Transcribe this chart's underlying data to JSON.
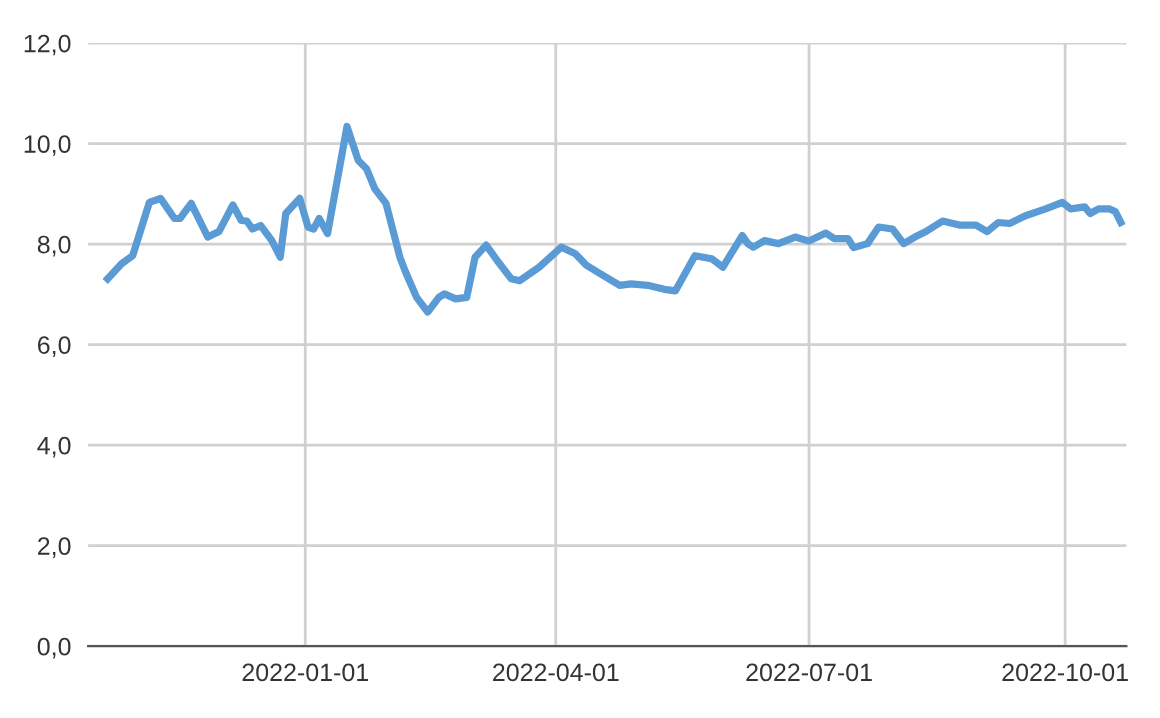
{
  "chart_data": {
    "type": "line",
    "color": "#5b9bd5",
    "grid": true,
    "marker": "none",
    "line_style": "solid",
    "x": [
      "2021-10-22",
      "2021-10-27",
      "2021-10-31",
      "2021-11-06",
      "2021-11-10",
      "2021-11-15",
      "2021-11-17",
      "2021-11-21",
      "2021-11-27",
      "2021-12-01",
      "2021-12-06",
      "2021-12-09",
      "2021-12-11",
      "2021-12-13",
      "2021-12-16",
      "2021-12-20",
      "2021-12-23",
      "2021-12-25",
      "2021-12-30",
      "2022-01-02",
      "2022-01-04",
      "2022-01-06",
      "2022-01-09",
      "2022-01-16",
      "2022-01-20",
      "2022-01-23",
      "2022-01-26",
      "2022-01-30",
      "2022-02-04",
      "2022-02-06",
      "2022-02-10",
      "2022-02-14",
      "2022-02-18",
      "2022-02-20",
      "2022-02-24",
      "2022-02-28",
      "2022-03-03",
      "2022-03-07",
      "2022-03-11",
      "2022-03-16",
      "2022-03-19",
      "2022-03-26",
      "2022-04-03",
      "2022-04-08",
      "2022-04-12",
      "2022-04-17",
      "2022-04-24",
      "2022-04-28",
      "2022-05-04",
      "2022-05-10",
      "2022-05-14",
      "2022-05-21",
      "2022-05-27",
      "2022-05-31",
      "2022-06-07",
      "2022-06-09",
      "2022-06-11",
      "2022-06-15",
      "2022-06-20",
      "2022-06-26",
      "2022-07-01",
      "2022-07-07",
      "2022-07-10",
      "2022-07-15",
      "2022-07-17",
      "2022-07-22",
      "2022-07-26",
      "2022-07-31",
      "2022-08-04",
      "2022-08-08",
      "2022-08-12",
      "2022-08-18",
      "2022-08-24",
      "2022-08-30",
      "2022-09-03",
      "2022-09-07",
      "2022-09-11",
      "2022-09-17",
      "2022-09-24",
      "2022-09-30",
      "2022-10-03",
      "2022-10-08",
      "2022-10-10",
      "2022-10-13",
      "2022-10-17",
      "2022-10-19",
      "2022-10-21"
    ],
    "values": [
      7.31,
      7.61,
      7.77,
      8.83,
      8.91,
      8.51,
      8.51,
      8.81,
      8.14,
      8.25,
      8.78,
      8.47,
      8.46,
      8.3,
      8.37,
      8.07,
      7.74,
      8.61,
      8.91,
      8.34,
      8.3,
      8.51,
      8.21,
      10.34,
      9.67,
      9.5,
      9.1,
      8.81,
      7.74,
      7.45,
      6.94,
      6.65,
      6.94,
      7.01,
      6.91,
      6.94,
      7.74,
      7.98,
      7.67,
      7.31,
      7.27,
      7.54,
      7.94,
      7.81,
      7.58,
      7.41,
      7.18,
      7.21,
      7.18,
      7.1,
      7.07,
      7.77,
      7.71,
      7.54,
      8.17,
      8.01,
      7.94,
      8.07,
      8.01,
      8.14,
      8.06,
      8.22,
      8.11,
      8.11,
      7.93,
      8.01,
      8.34,
      8.3,
      8.01,
      8.14,
      8.25,
      8.46,
      8.38,
      8.38,
      8.25,
      8.43,
      8.41,
      8.57,
      8.7,
      8.83,
      8.7,
      8.74,
      8.61,
      8.7,
      8.7,
      8.65,
      8.43
    ],
    "xlim": [
      "2021-10-15",
      "2022-10-23"
    ],
    "xticks": [
      "2022-01-01",
      "2022-04-01",
      "2022-07-01",
      "2022-10-01"
    ],
    "ylim": [
      0,
      12
    ],
    "yticks": [
      {
        "value": 0,
        "label": "0,0"
      },
      {
        "value": 2,
        "label": "2,0"
      },
      {
        "value": 4,
        "label": "4,0"
      },
      {
        "value": 6,
        "label": "6,0"
      },
      {
        "value": 8,
        "label": "8,0"
      },
      {
        "value": 10,
        "label": "10,0"
      },
      {
        "value": 12,
        "label": "12,0"
      }
    ]
  }
}
